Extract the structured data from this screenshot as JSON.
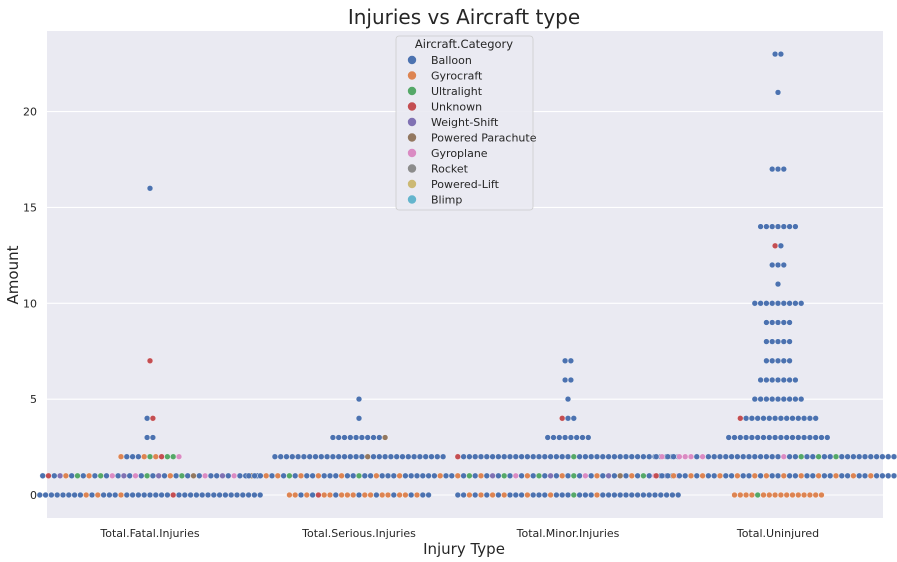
{
  "chart_data": {
    "type": "scatter",
    "style": "swarm",
    "title": "Injuries vs Aircraft type",
    "xlabel": "Injury Type",
    "ylabel": "Amount",
    "categories": [
      "Total.Fatal.Injuries",
      "Total.Serious.Injuries",
      "Total.Minor.Injuries",
      "Total.Uninjured"
    ],
    "ylim": [
      -1.2,
      24.2
    ],
    "yticks": [
      0,
      5,
      10,
      15,
      20
    ],
    "grid": true,
    "background": "#eaeaf2",
    "legend": {
      "title": "Aircraft.Category",
      "placement": "top-center",
      "entries": [
        {
          "name": "Balloon",
          "color": "#4c72b0"
        },
        {
          "name": "Gyrocraft",
          "color": "#dd8452"
        },
        {
          "name": "Ultralight",
          "color": "#55a868"
        },
        {
          "name": "Unknown",
          "color": "#c44e52"
        },
        {
          "name": "Weight-Shift",
          "color": "#8172b3"
        },
        {
          "name": "Powered Parachute",
          "color": "#937860"
        },
        {
          "name": "Gyroplane",
          "color": "#da8bc3"
        },
        {
          "name": "Rocket",
          "color": "#8c8c8c"
        },
        {
          "name": "Powered-Lift",
          "color": "#ccb974"
        },
        {
          "name": "Blimp",
          "color": "#64b5cd"
        }
      ]
    },
    "groups": [
      {
        "category": "Total.Fatal.Injuries",
        "points": [
          {
            "y": 0,
            "cats": [
              "Balloon",
              "Balloon",
              "Balloon",
              "Balloon",
              "Balloon",
              "Balloon",
              "Balloon",
              "Balloon",
              "Gyrocraft",
              "Balloon",
              "Gyrocraft",
              "Balloon",
              "Balloon",
              "Balloon",
              "Gyrocraft",
              "Balloon",
              "Balloon",
              "Balloon",
              "Balloon",
              "Balloon",
              "Balloon",
              "Balloon",
              "Balloon",
              "Unknown",
              "Balloon",
              "Balloon",
              "Balloon",
              "Balloon",
              "Balloon",
              "Balloon",
              "Balloon",
              "Balloon",
              "Balloon",
              "Balloon",
              "Balloon",
              "Balloon",
              "Balloon",
              "Balloon",
              "Balloon"
            ]
          },
          {
            "y": 1,
            "cats": [
              "Balloon",
              "Unknown",
              "Balloon",
              "Weight-Shift",
              "Gyrocraft",
              "Balloon",
              "Ultralight",
              "Balloon",
              "Gyrocraft",
              "Balloon",
              "Ultralight",
              "Balloon",
              "Gyroplane",
              "Balloon",
              "Weight-Shift",
              "Balloon",
              "Gyroplane",
              "Balloon",
              "Ultralight",
              "Balloon",
              "Weight-Shift",
              "Balloon",
              "Gyrocraft",
              "Balloon",
              "Ultralight",
              "Balloon",
              "Powered Parachute",
              "Balloon",
              "Gyroplane",
              "Balloon",
              "Balloon",
              "Weight-Shift",
              "Balloon",
              "Gyroplane",
              "Balloon",
              "Balloon",
              "Powered Parachute",
              "Balloon"
            ]
          },
          {
            "y": 2,
            "cats": [
              "Gyrocraft",
              "Balloon",
              "Balloon",
              "Balloon",
              "Gyrocraft",
              "Ultralight",
              "Gyrocraft",
              "Unknown",
              "Ultralight",
              "Ultralight",
              "Gyroplane"
            ]
          },
          {
            "y": 3,
            "cats": [
              "Balloon",
              "Balloon"
            ]
          },
          {
            "y": 4,
            "cats": [
              "Balloon",
              "Unknown"
            ]
          },
          {
            "y": 7,
            "cats": [
              "Unknown"
            ]
          },
          {
            "y": 16,
            "cats": [
              "Balloon"
            ]
          }
        ]
      },
      {
        "category": "Total.Serious.Injuries",
        "points": [
          {
            "y": 0,
            "cats": [
              "Gyrocraft",
              "Gyrocraft",
              "Balloon",
              "Gyrocraft",
              "Balloon",
              "Unknown",
              "Gyrocraft",
              "Gyrocraft",
              "Balloon",
              "Gyrocraft",
              "Gyrocraft",
              "Gyrocraft",
              "Balloon",
              "Gyrocraft",
              "Gyrocraft",
              "Balloon",
              "Gyrocraft",
              "Gyrocraft",
              "Balloon",
              "Gyrocraft",
              "Gyrocraft",
              "Balloon",
              "Gyrocraft",
              "Balloon",
              "Balloon"
            ]
          },
          {
            "y": 1,
            "cats": [
              "Balloon",
              "Balloon",
              "Balloon",
              "Gyrocraft",
              "Balloon",
              "Gyrocraft",
              "Balloon",
              "Ultralight",
              "Balloon",
              "Gyrocraft",
              "Balloon",
              "Balloon",
              "Gyrocraft",
              "Balloon",
              "Balloon",
              "Balloon",
              "Gyrocraft",
              "Balloon",
              "Balloon",
              "Ultralight",
              "Balloon",
              "Balloon",
              "Gyrocraft",
              "Balloon",
              "Balloon",
              "Balloon",
              "Gyrocraft",
              "Balloon",
              "Balloon",
              "Balloon",
              "Balloon",
              "Balloon",
              "Balloon",
              "Gyrocraft",
              "Balloon",
              "Balloon",
              "Balloon",
              "Balloon",
              "Powered Parachute"
            ]
          },
          {
            "y": 2,
            "cats": [
              "Balloon",
              "Balloon",
              "Balloon",
              "Balloon",
              "Balloon",
              "Balloon",
              "Balloon",
              "Balloon",
              "Balloon",
              "Balloon",
              "Balloon",
              "Balloon",
              "Balloon",
              "Balloon",
              "Balloon",
              "Balloon",
              "Powered Parachute",
              "Balloon",
              "Balloon",
              "Balloon",
              "Balloon",
              "Balloon",
              "Balloon",
              "Balloon",
              "Balloon",
              "Balloon",
              "Balloon",
              "Balloon",
              "Balloon",
              "Balloon"
            ]
          },
          {
            "y": 3,
            "cats": [
              "Balloon",
              "Balloon",
              "Balloon",
              "Balloon",
              "Balloon",
              "Balloon",
              "Balloon",
              "Balloon",
              "Balloon",
              "Powered Parachute"
            ]
          },
          {
            "y": 4,
            "cats": [
              "Balloon"
            ]
          },
          {
            "y": 5,
            "cats": [
              "Balloon"
            ]
          }
        ]
      },
      {
        "category": "Total.Minor.Injuries",
        "points": [
          {
            "y": 0,
            "cats": [
              "Balloon",
              "Balloon",
              "Gyrocraft",
              "Balloon",
              "Gyrocraft",
              "Balloon",
              "Gyrocraft",
              "Balloon",
              "Gyrocraft",
              "Balloon",
              "Balloon",
              "Balloon",
              "Gyrocraft",
              "Balloon",
              "Balloon",
              "Balloon",
              "Gyrocraft",
              "Balloon",
              "Balloon",
              "Balloon",
              "Ultralight",
              "Balloon",
              "Balloon",
              "Balloon",
              "Gyrocraft",
              "Balloon",
              "Balloon",
              "Balloon",
              "Balloon",
              "Balloon",
              "Balloon",
              "Balloon",
              "Balloon",
              "Balloon",
              "Balloon",
              "Balloon",
              "Balloon",
              "Balloon",
              "Balloon"
            ]
          },
          {
            "y": 1,
            "cats": [
              "Gyrocraft",
              "Balloon",
              "Ultralight",
              "Balloon",
              "Gyrocraft",
              "Balloon",
              "Weight-Shift",
              "Balloon",
              "Ultralight",
              "Balloon",
              "Gyroplane",
              "Balloon",
              "Gyrocraft",
              "Balloon",
              "Ultralight",
              "Balloon",
              "Weight-Shift",
              "Balloon",
              "Gyrocraft",
              "Balloon",
              "Ultralight",
              "Balloon",
              "Gyroplane",
              "Balloon",
              "Gyrocraft",
              "Balloon",
              "Weight-Shift",
              "Balloon",
              "Powered Parachute",
              "Balloon",
              "Gyrocraft",
              "Balloon",
              "Ultralight",
              "Balloon",
              "Gyroplane",
              "Balloon",
              "Weight-Shift",
              "Balloon",
              "Gyroplane"
            ]
          },
          {
            "y": 2,
            "cats": [
              "Unknown",
              "Balloon",
              "Balloon",
              "Balloon",
              "Balloon",
              "Balloon",
              "Balloon",
              "Balloon",
              "Balloon",
              "Balloon",
              "Balloon",
              "Balloon",
              "Balloon",
              "Balloon",
              "Balloon",
              "Balloon",
              "Balloon",
              "Balloon",
              "Balloon",
              "Balloon",
              "Ultralight",
              "Balloon",
              "Balloon",
              "Balloon",
              "Balloon",
              "Balloon",
              "Balloon",
              "Balloon",
              "Balloon",
              "Balloon",
              "Balloon",
              "Balloon",
              "Balloon",
              "Balloon",
              "Balloon",
              "Balloon",
              "Balloon",
              "Balloon",
              "Balloon"
            ]
          },
          {
            "y": 3,
            "cats": [
              "Balloon",
              "Balloon",
              "Balloon",
              "Balloon",
              "Balloon",
              "Balloon",
              "Balloon",
              "Balloon"
            ]
          },
          {
            "y": 4,
            "cats": [
              "Unknown",
              "Balloon",
              "Balloon"
            ]
          },
          {
            "y": 5,
            "cats": [
              "Balloon"
            ]
          },
          {
            "y": 6,
            "cats": [
              "Balloon",
              "Balloon"
            ]
          },
          {
            "y": 7,
            "cats": [
              "Balloon",
              "Balloon"
            ]
          }
        ]
      },
      {
        "category": "Total.Uninjured",
        "points": [
          {
            "y": 0,
            "cats": [
              "Gyrocraft",
              "Gyrocraft",
              "Gyrocraft",
              "Gyrocraft",
              "Ultralight",
              "Gyrocraft",
              "Gyrocraft",
              "Gyrocraft",
              "Gyrocraft",
              "Gyrocraft",
              "Gyrocraft",
              "Gyrocraft",
              "Gyrocraft",
              "Gyrocraft",
              "Gyrocraft",
              "Gyrocraft"
            ]
          },
          {
            "y": 1,
            "cats": [
              "Unknown",
              "Balloon",
              "Balloon",
              "Gyrocraft",
              "Balloon",
              "Balloon",
              "Gyrocraft",
              "Balloon",
              "Gyrocraft",
              "Balloon",
              "Balloon",
              "Gyrocraft",
              "Balloon",
              "Balloon",
              "Gyrocraft",
              "Balloon",
              "Balloon",
              "Gyrocraft",
              "Balloon",
              "Gyrocraft",
              "Balloon",
              "Balloon",
              "Gyrocraft",
              "Balloon",
              "Balloon",
              "Gyrocraft",
              "Balloon",
              "Balloon",
              "Gyrocraft",
              "Balloon",
              "Balloon",
              "Gyrocraft",
              "Balloon",
              "Balloon",
              "Gyrocraft",
              "Balloon",
              "Balloon",
              "Gyrocraft",
              "Balloon",
              "Balloon",
              "Balloon",
              "Balloon",
              "Powered Parachute"
            ]
          },
          {
            "y": 2,
            "cats": [
              "Balloon",
              "Gyroplane",
              "Balloon",
              "Balloon",
              "Gyroplane",
              "Gyroplane",
              "Gyroplane",
              "Balloon",
              "Gyroplane",
              "Balloon",
              "Balloon",
              "Balloon",
              "Balloon",
              "Balloon",
              "Balloon",
              "Balloon",
              "Balloon",
              "Balloon",
              "Balloon",
              "Balloon",
              "Balloon",
              "Balloon",
              "Gyroplane",
              "Balloon",
              "Balloon",
              "Ultralight",
              "Balloon",
              "Balloon",
              "Ultralight",
              "Balloon",
              "Balloon",
              "Ultralight",
              "Balloon",
              "Balloon",
              "Balloon",
              "Balloon",
              "Balloon",
              "Balloon",
              "Balloon",
              "Balloon",
              "Balloon",
              "Balloon",
              "Gyrocraft"
            ]
          },
          {
            "y": 3,
            "cats": [
              "Balloon",
              "Balloon",
              "Balloon",
              "Balloon",
              "Balloon",
              "Balloon",
              "Balloon",
              "Balloon",
              "Balloon",
              "Balloon",
              "Balloon",
              "Balloon",
              "Balloon",
              "Balloon",
              "Balloon",
              "Balloon",
              "Balloon",
              "Balloon"
            ]
          },
          {
            "y": 4,
            "cats": [
              "Unknown",
              "Balloon",
              "Balloon",
              "Balloon",
              "Balloon",
              "Balloon",
              "Balloon",
              "Balloon",
              "Balloon",
              "Balloon",
              "Balloon",
              "Balloon",
              "Balloon",
              "Balloon"
            ]
          },
          {
            "y": 5,
            "cats": [
              "Balloon",
              "Balloon",
              "Balloon",
              "Balloon",
              "Balloon",
              "Balloon",
              "Balloon",
              "Balloon",
              "Balloon"
            ]
          },
          {
            "y": 6,
            "cats": [
              "Balloon",
              "Balloon",
              "Balloon",
              "Balloon",
              "Balloon",
              "Balloon",
              "Balloon"
            ]
          },
          {
            "y": 7,
            "cats": [
              "Balloon",
              "Balloon",
              "Balloon",
              "Balloon",
              "Balloon"
            ]
          },
          {
            "y": 8,
            "cats": [
              "Balloon",
              "Balloon",
              "Balloon",
              "Balloon",
              "Balloon"
            ]
          },
          {
            "y": 9,
            "cats": [
              "Balloon",
              "Balloon",
              "Balloon",
              "Balloon",
              "Balloon"
            ]
          },
          {
            "y": 10,
            "cats": [
              "Balloon",
              "Balloon",
              "Balloon",
              "Balloon",
              "Balloon",
              "Balloon",
              "Balloon",
              "Balloon",
              "Balloon"
            ]
          },
          {
            "y": 11,
            "cats": [
              "Balloon"
            ]
          },
          {
            "y": 12,
            "cats": [
              "Balloon",
              "Balloon",
              "Balloon"
            ]
          },
          {
            "y": 13,
            "cats": [
              "Unknown",
              "Balloon"
            ]
          },
          {
            "y": 14,
            "cats": [
              "Balloon",
              "Balloon",
              "Balloon",
              "Balloon",
              "Balloon",
              "Balloon",
              "Balloon"
            ]
          },
          {
            "y": 17,
            "cats": [
              "Balloon",
              "Balloon",
              "Balloon"
            ]
          },
          {
            "y": 21,
            "cats": [
              "Balloon"
            ]
          },
          {
            "y": 23,
            "cats": [
              "Balloon",
              "Balloon"
            ]
          }
        ]
      }
    ]
  }
}
